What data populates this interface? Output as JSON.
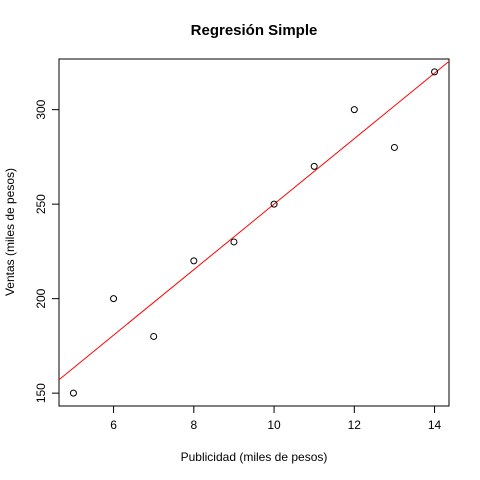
{
  "chart_data": {
    "type": "scatter",
    "title": "Regresión Simple",
    "xlabel": "Publicidad (miles de pesos)",
    "ylabel": "Ventas (miles de pesos)",
    "xlim": [
      4.64,
      14.36
    ],
    "ylim": [
      143.2,
      326.8
    ],
    "x_ticks": [
      6,
      8,
      10,
      12,
      14
    ],
    "y_ticks": [
      150,
      200,
      250,
      300
    ],
    "grid": false,
    "points": {
      "x": [
        5,
        6,
        7,
        8,
        9,
        10,
        11,
        12,
        13,
        14
      ],
      "y": [
        150,
        200,
        180,
        220,
        230,
        250,
        270,
        300,
        280,
        320
      ],
      "marker": "open-circle",
      "color": "#000000"
    },
    "regression_line": {
      "intercept": 76.7,
      "slope": 17.33,
      "color": "#ff0000"
    }
  }
}
